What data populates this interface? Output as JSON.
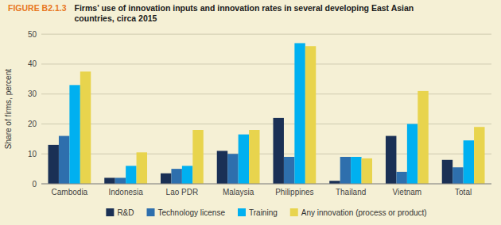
{
  "chart_data": {
    "type": "bar",
    "title": "FIGURE B2.1.3",
    "subtitle": "Firms’ use of innovation inputs and innovation rates in several developing East Asian\ncountries, circa 2015",
    "categories": [
      "Cambodia",
      "Indonesia",
      "Lao PDR",
      "Malaysia",
      "Philippines",
      "Thailand",
      "Vietnam",
      "Total"
    ],
    "series": [
      {
        "name": "R&D",
        "color": "#1a3055",
        "values": [
          13,
          2,
          3.5,
          11,
          22,
          1,
          16,
          8
        ]
      },
      {
        "name": "Technology license",
        "color": "#2e6fad",
        "values": [
          16,
          2,
          5,
          10,
          9,
          9,
          4,
          5.5
        ]
      },
      {
        "name": "Training",
        "color": "#00b0f0",
        "values": [
          33,
          6,
          6,
          16.5,
          47,
          9,
          20,
          14.5
        ]
      },
      {
        "name": "Any innovation (process or product)",
        "color": "#e8d44d",
        "values": [
          37.5,
          10.5,
          18,
          18,
          46,
          8.5,
          31,
          19
        ]
      }
    ],
    "ylabel": "Share of firms, percent",
    "ylim": [
      0,
      50
    ],
    "yticks": [
      0,
      10,
      20,
      30,
      40,
      50
    ],
    "grid": true,
    "legend": "bottom"
  }
}
